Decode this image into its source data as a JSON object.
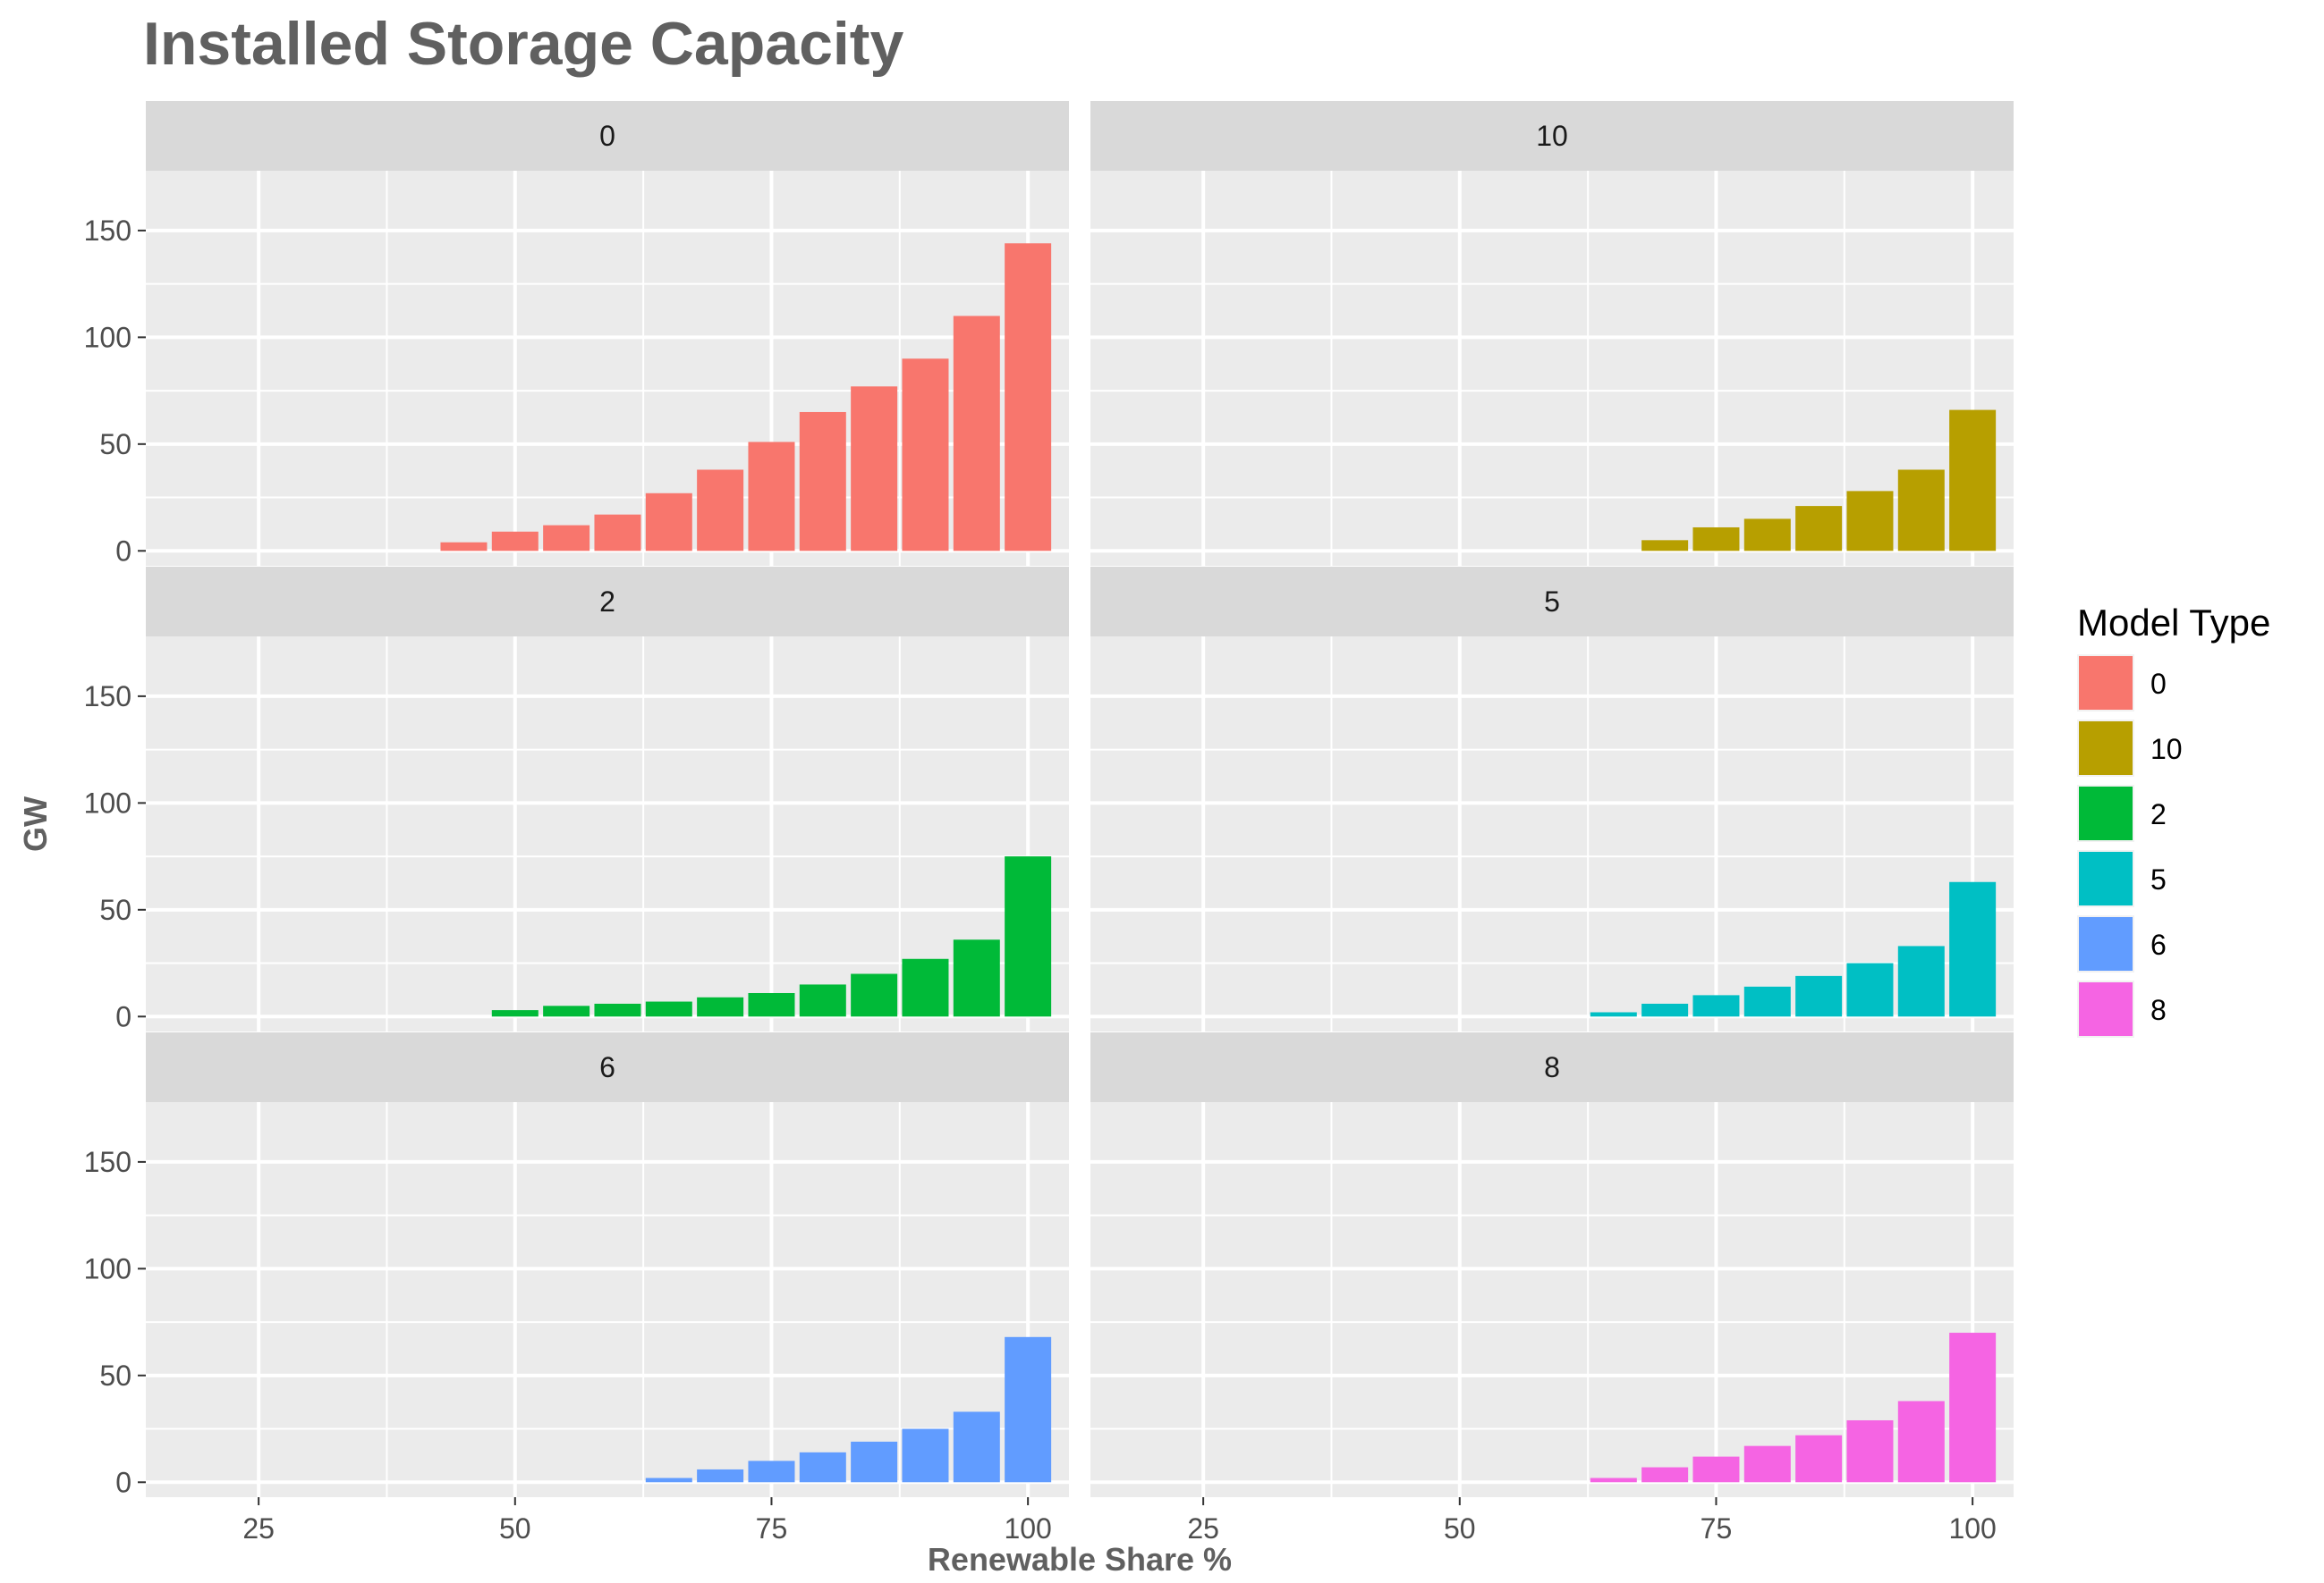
{
  "chart_data": {
    "type": "bar",
    "title": "Installed Storage Capacity",
    "xlabel": "Renewable Share %",
    "ylabel": "GW",
    "xlim": [
      14,
      104
    ],
    "ylim": [
      -7,
      178
    ],
    "x_ticks": [
      25,
      50,
      75,
      100
    ],
    "x_tick_labels": [
      "25",
      "50",
      "75",
      "100"
    ],
    "y_ticks": [
      0,
      50,
      100,
      150
    ],
    "y_tick_labels": [
      "0",
      "50",
      "100",
      "150"
    ],
    "grid": true,
    "facet_layout": "3 rows x 2 columns",
    "legend": {
      "title": "Model Type",
      "position": "right",
      "entries": [
        {
          "label": "0",
          "color": "#F8766D"
        },
        {
          "label": "10",
          "color": "#B79F00"
        },
        {
          "label": "2",
          "color": "#00BA38"
        },
        {
          "label": "5",
          "color": "#00BFC4"
        },
        {
          "label": "6",
          "color": "#619CFF"
        },
        {
          "label": "8",
          "color": "#F564E3"
        }
      ]
    },
    "panels": [
      {
        "label": "0",
        "color": "#F8766D",
        "x": [
          45,
          50,
          55,
          60,
          65,
          70,
          75,
          80,
          85,
          90,
          95,
          100
        ],
        "values": [
          4,
          9,
          12,
          17,
          27,
          38,
          51,
          65,
          77,
          90,
          110,
          144
        ]
      },
      {
        "label": "10",
        "color": "#B79F00",
        "x": [
          70,
          75,
          80,
          85,
          90,
          95,
          100
        ],
        "values": [
          5,
          11,
          15,
          21,
          28,
          38,
          66
        ]
      },
      {
        "label": "2",
        "color": "#00BA38",
        "x": [
          50,
          55,
          60,
          65,
          70,
          75,
          80,
          85,
          90,
          95,
          100
        ],
        "values": [
          3,
          5,
          6,
          7,
          9,
          11,
          15,
          20,
          27,
          36,
          75
        ]
      },
      {
        "label": "5",
        "color": "#00BFC4",
        "x": [
          65,
          70,
          75,
          80,
          85,
          90,
          95,
          100
        ],
        "values": [
          2,
          6,
          10,
          14,
          19,
          25,
          33,
          63
        ]
      },
      {
        "label": "6",
        "color": "#619CFF",
        "x": [
          65,
          70,
          75,
          80,
          85,
          90,
          95,
          100
        ],
        "values": [
          2,
          6,
          10,
          14,
          19,
          25,
          33,
          68
        ]
      },
      {
        "label": "8",
        "color": "#F564E3",
        "x": [
          65,
          70,
          75,
          80,
          85,
          90,
          95,
          100
        ],
        "values": [
          2,
          7,
          12,
          17,
          22,
          29,
          38,
          70
        ]
      }
    ]
  }
}
